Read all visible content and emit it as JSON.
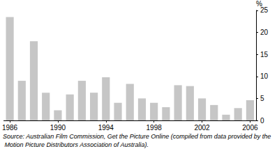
{
  "chart_data": {
    "type": "bar",
    "categories": [
      "1986",
      null,
      null,
      null,
      "1990",
      null,
      null,
      null,
      "1994",
      null,
      null,
      null,
      "1998",
      null,
      null,
      null,
      "2002",
      null,
      null,
      null,
      "2006"
    ],
    "values": [
      23.5,
      9,
      18,
      6.3,
      2.3,
      5.9,
      9,
      6.3,
      9.8,
      4,
      8.3,
      5,
      4,
      3,
      8,
      7.8,
      5,
      3.5,
      1.3,
      2.8,
      4.6
    ],
    "color": "#c6c6c6",
    "ylabel": "%",
    "ylim": [
      0,
      25
    ],
    "yticks": [
      0,
      5,
      10,
      15,
      20,
      25
    ],
    "grid": false,
    "source": "Source: Australian Film Commission, Get the Picture Online (compiled from data provided by the Motion Picture Distributors Association of Australia)."
  }
}
